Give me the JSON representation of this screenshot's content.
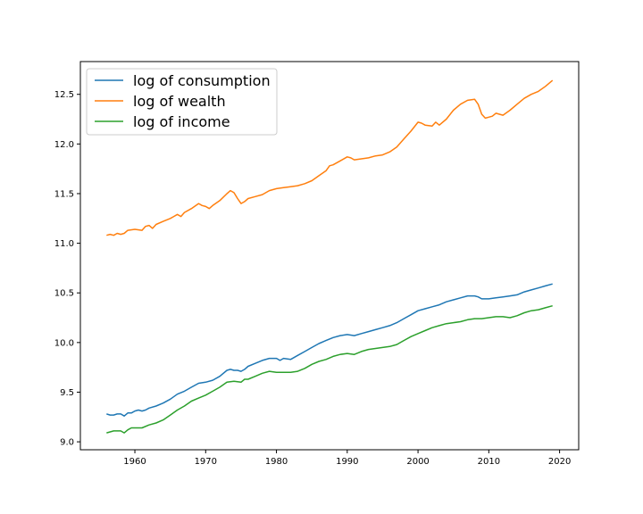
{
  "chart_data": {
    "type": "line",
    "title": "",
    "xlabel": "",
    "ylabel": "",
    "xlim": [
      1952.3,
      2022.7
    ],
    "ylim": [
      8.92,
      12.83
    ],
    "xticks": [
      1960,
      1970,
      1980,
      1990,
      2000,
      2010,
      2020
    ],
    "yticks": [
      9.0,
      9.5,
      10.0,
      10.5,
      11.0,
      11.5,
      12.0,
      12.5
    ],
    "xtick_labels": [
      "1960",
      "1970",
      "1980",
      "1990",
      "2000",
      "2010",
      "2020"
    ],
    "ytick_labels": [
      "9.0",
      "9.5",
      "10.0",
      "10.5",
      "11.0",
      "11.5",
      "12.0",
      "12.5"
    ],
    "grid": false,
    "legend": {
      "position": "upper-left"
    },
    "series": [
      {
        "name": "log of consumption",
        "color": "#1f77b4",
        "points": [
          [
            1956.0,
            9.28
          ],
          [
            1956.5,
            9.27
          ],
          [
            1957.0,
            9.27
          ],
          [
            1957.5,
            9.28
          ],
          [
            1958.0,
            9.28
          ],
          [
            1958.5,
            9.26
          ],
          [
            1959.0,
            9.29
          ],
          [
            1959.5,
            9.29
          ],
          [
            1960.0,
            9.31
          ],
          [
            1960.5,
            9.32
          ],
          [
            1961.0,
            9.31
          ],
          [
            1961.5,
            9.32
          ],
          [
            1962.0,
            9.34
          ],
          [
            1963.0,
            9.36
          ],
          [
            1964.0,
            9.39
          ],
          [
            1965.0,
            9.43
          ],
          [
            1966.0,
            9.48
          ],
          [
            1967.0,
            9.51
          ],
          [
            1968.0,
            9.55
          ],
          [
            1969.0,
            9.59
          ],
          [
            1970.0,
            9.6
          ],
          [
            1971.0,
            9.62
          ],
          [
            1972.0,
            9.66
          ],
          [
            1973.0,
            9.72
          ],
          [
            1973.5,
            9.73
          ],
          [
            1974.0,
            9.72
          ],
          [
            1974.5,
            9.72
          ],
          [
            1975.0,
            9.71
          ],
          [
            1975.5,
            9.73
          ],
          [
            1976.0,
            9.76
          ],
          [
            1977.0,
            9.79
          ],
          [
            1978.0,
            9.82
          ],
          [
            1979.0,
            9.84
          ],
          [
            1980.0,
            9.84
          ],
          [
            1980.5,
            9.82
          ],
          [
            1981.0,
            9.84
          ],
          [
            1982.0,
            9.83
          ],
          [
            1983.0,
            9.87
          ],
          [
            1984.0,
            9.91
          ],
          [
            1985.0,
            9.95
          ],
          [
            1986.0,
            9.99
          ],
          [
            1987.0,
            10.02
          ],
          [
            1988.0,
            10.05
          ],
          [
            1989.0,
            10.07
          ],
          [
            1990.0,
            10.08
          ],
          [
            1991.0,
            10.07
          ],
          [
            1992.0,
            10.09
          ],
          [
            1993.0,
            10.11
          ],
          [
            1994.0,
            10.13
          ],
          [
            1995.0,
            10.15
          ],
          [
            1996.0,
            10.17
          ],
          [
            1997.0,
            10.2
          ],
          [
            1998.0,
            10.24
          ],
          [
            1999.0,
            10.28
          ],
          [
            2000.0,
            10.32
          ],
          [
            2001.0,
            10.34
          ],
          [
            2002.0,
            10.36
          ],
          [
            2003.0,
            10.38
          ],
          [
            2004.0,
            10.41
          ],
          [
            2005.0,
            10.43
          ],
          [
            2006.0,
            10.45
          ],
          [
            2007.0,
            10.47
          ],
          [
            2008.0,
            10.47
          ],
          [
            2008.5,
            10.46
          ],
          [
            2009.0,
            10.44
          ],
          [
            2010.0,
            10.44
          ],
          [
            2011.0,
            10.45
          ],
          [
            2012.0,
            10.46
          ],
          [
            2013.0,
            10.47
          ],
          [
            2014.0,
            10.48
          ],
          [
            2015.0,
            10.51
          ],
          [
            2016.0,
            10.53
          ],
          [
            2017.0,
            10.55
          ],
          [
            2018.0,
            10.57
          ],
          [
            2019.0,
            10.59
          ]
        ]
      },
      {
        "name": "log of wealth",
        "color": "#ff7f0e",
        "points": [
          [
            1956.0,
            11.08
          ],
          [
            1956.5,
            11.09
          ],
          [
            1957.0,
            11.08
          ],
          [
            1957.5,
            11.1
          ],
          [
            1958.0,
            11.09
          ],
          [
            1958.5,
            11.1
          ],
          [
            1959.0,
            11.13
          ],
          [
            1960.0,
            11.14
          ],
          [
            1961.0,
            11.13
          ],
          [
            1961.5,
            11.17
          ],
          [
            1962.0,
            11.18
          ],
          [
            1962.5,
            11.15
          ],
          [
            1963.0,
            11.19
          ],
          [
            1964.0,
            11.22
          ],
          [
            1965.0,
            11.25
          ],
          [
            1965.5,
            11.27
          ],
          [
            1966.0,
            11.29
          ],
          [
            1966.5,
            11.27
          ],
          [
            1967.0,
            11.31
          ],
          [
            1968.0,
            11.35
          ],
          [
            1969.0,
            11.4
          ],
          [
            1969.5,
            11.38
          ],
          [
            1970.0,
            11.37
          ],
          [
            1970.5,
            11.35
          ],
          [
            1971.0,
            11.38
          ],
          [
            1972.0,
            11.43
          ],
          [
            1973.0,
            11.5
          ],
          [
            1973.5,
            11.53
          ],
          [
            1974.0,
            11.51
          ],
          [
            1974.5,
            11.45
          ],
          [
            1975.0,
            11.4
          ],
          [
            1975.5,
            11.42
          ],
          [
            1976.0,
            11.45
          ],
          [
            1977.0,
            11.47
          ],
          [
            1978.0,
            11.49
          ],
          [
            1979.0,
            11.53
          ],
          [
            1980.0,
            11.55
          ],
          [
            1981.0,
            11.56
          ],
          [
            1982.0,
            11.57
          ],
          [
            1983.0,
            11.58
          ],
          [
            1984.0,
            11.6
          ],
          [
            1985.0,
            11.63
          ],
          [
            1986.0,
            11.68
          ],
          [
            1987.0,
            11.73
          ],
          [
            1987.5,
            11.78
          ],
          [
            1988.0,
            11.79
          ],
          [
            1989.0,
            11.83
          ],
          [
            1990.0,
            11.87
          ],
          [
            1990.5,
            11.86
          ],
          [
            1991.0,
            11.84
          ],
          [
            1992.0,
            11.85
          ],
          [
            1993.0,
            11.86
          ],
          [
            1994.0,
            11.88
          ],
          [
            1995.0,
            11.89
          ],
          [
            1996.0,
            11.92
          ],
          [
            1997.0,
            11.97
          ],
          [
            1998.0,
            12.05
          ],
          [
            1999.0,
            12.13
          ],
          [
            2000.0,
            12.22
          ],
          [
            2000.5,
            12.21
          ],
          [
            2001.0,
            12.19
          ],
          [
            2002.0,
            12.18
          ],
          [
            2002.5,
            12.22
          ],
          [
            2003.0,
            12.19
          ],
          [
            2004.0,
            12.25
          ],
          [
            2005.0,
            12.34
          ],
          [
            2006.0,
            12.4
          ],
          [
            2007.0,
            12.44
          ],
          [
            2008.0,
            12.45
          ],
          [
            2008.5,
            12.4
          ],
          [
            2009.0,
            12.3
          ],
          [
            2009.5,
            12.26
          ],
          [
            2010.0,
            12.27
          ],
          [
            2010.5,
            12.28
          ],
          [
            2011.0,
            12.31
          ],
          [
            2011.5,
            12.3
          ],
          [
            2012.0,
            12.29
          ],
          [
            2013.0,
            12.34
          ],
          [
            2014.0,
            12.4
          ],
          [
            2015.0,
            12.46
          ],
          [
            2016.0,
            12.5
          ],
          [
            2017.0,
            12.53
          ],
          [
            2018.0,
            12.58
          ],
          [
            2019.0,
            12.64
          ]
        ]
      },
      {
        "name": "log of income",
        "color": "#2ca02c",
        "points": [
          [
            1956.0,
            9.09
          ],
          [
            1956.5,
            9.1
          ],
          [
            1957.0,
            9.11
          ],
          [
            1957.5,
            9.11
          ],
          [
            1958.0,
            9.11
          ],
          [
            1958.5,
            9.09
          ],
          [
            1959.0,
            9.12
          ],
          [
            1959.5,
            9.14
          ],
          [
            1960.0,
            9.14
          ],
          [
            1961.0,
            9.14
          ],
          [
            1962.0,
            9.17
          ],
          [
            1963.0,
            9.19
          ],
          [
            1964.0,
            9.22
          ],
          [
            1965.0,
            9.27
          ],
          [
            1966.0,
            9.32
          ],
          [
            1967.0,
            9.36
          ],
          [
            1968.0,
            9.41
          ],
          [
            1969.0,
            9.44
          ],
          [
            1970.0,
            9.47
          ],
          [
            1971.0,
            9.51
          ],
          [
            1972.0,
            9.55
          ],
          [
            1973.0,
            9.6
          ],
          [
            1974.0,
            9.61
          ],
          [
            1975.0,
            9.6
          ],
          [
            1975.5,
            9.63
          ],
          [
            1976.0,
            9.63
          ],
          [
            1977.0,
            9.66
          ],
          [
            1978.0,
            9.69
          ],
          [
            1979.0,
            9.71
          ],
          [
            1980.0,
            9.7
          ],
          [
            1981.0,
            9.7
          ],
          [
            1982.0,
            9.7
          ],
          [
            1983.0,
            9.71
          ],
          [
            1984.0,
            9.74
          ],
          [
            1985.0,
            9.78
          ],
          [
            1986.0,
            9.81
          ],
          [
            1987.0,
            9.83
          ],
          [
            1988.0,
            9.86
          ],
          [
            1989.0,
            9.88
          ],
          [
            1990.0,
            9.89
          ],
          [
            1991.0,
            9.88
          ],
          [
            1992.0,
            9.91
          ],
          [
            1993.0,
            9.93
          ],
          [
            1994.0,
            9.94
          ],
          [
            1995.0,
            9.95
          ],
          [
            1996.0,
            9.96
          ],
          [
            1997.0,
            9.98
          ],
          [
            1998.0,
            10.02
          ],
          [
            1999.0,
            10.06
          ],
          [
            2000.0,
            10.09
          ],
          [
            2001.0,
            10.12
          ],
          [
            2002.0,
            10.15
          ],
          [
            2003.0,
            10.17
          ],
          [
            2004.0,
            10.19
          ],
          [
            2005.0,
            10.2
          ],
          [
            2006.0,
            10.21
          ],
          [
            2007.0,
            10.23
          ],
          [
            2008.0,
            10.24
          ],
          [
            2009.0,
            10.24
          ],
          [
            2010.0,
            10.25
          ],
          [
            2011.0,
            10.26
          ],
          [
            2012.0,
            10.26
          ],
          [
            2013.0,
            10.25
          ],
          [
            2014.0,
            10.27
          ],
          [
            2015.0,
            10.3
          ],
          [
            2016.0,
            10.32
          ],
          [
            2017.0,
            10.33
          ],
          [
            2018.0,
            10.35
          ],
          [
            2019.0,
            10.37
          ]
        ]
      }
    ]
  }
}
